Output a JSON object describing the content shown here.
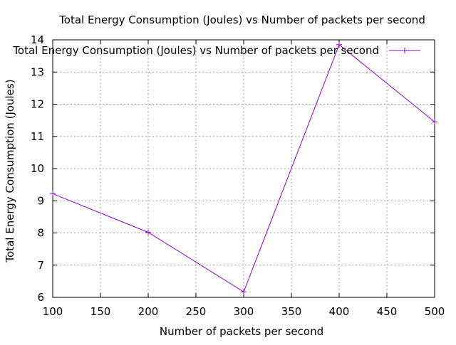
{
  "chart_data": {
    "type": "line",
    "title": "Total Energy Consumption (Joules) vs Number of packets per second",
    "xlabel": "Number of packets per second",
    "ylabel": "Total Energy Consumption (Joules)",
    "xlim": [
      100,
      500
    ],
    "ylim": [
      6,
      14
    ],
    "xticks": [
      100,
      150,
      200,
      250,
      300,
      350,
      400,
      450,
      500
    ],
    "yticks": [
      6,
      7,
      8,
      9,
      10,
      11,
      12,
      13,
      14
    ],
    "grid": true,
    "legend_position": "top-right",
    "series": [
      {
        "name": "Total Energy Consumption (Joules) vs Number of packets per second",
        "color": "#9400d3",
        "marker": "plus",
        "x": [
          100,
          200,
          300,
          400,
          500
        ],
        "y": [
          9.22,
          8.02,
          6.17,
          13.85,
          11.45
        ]
      }
    ]
  }
}
